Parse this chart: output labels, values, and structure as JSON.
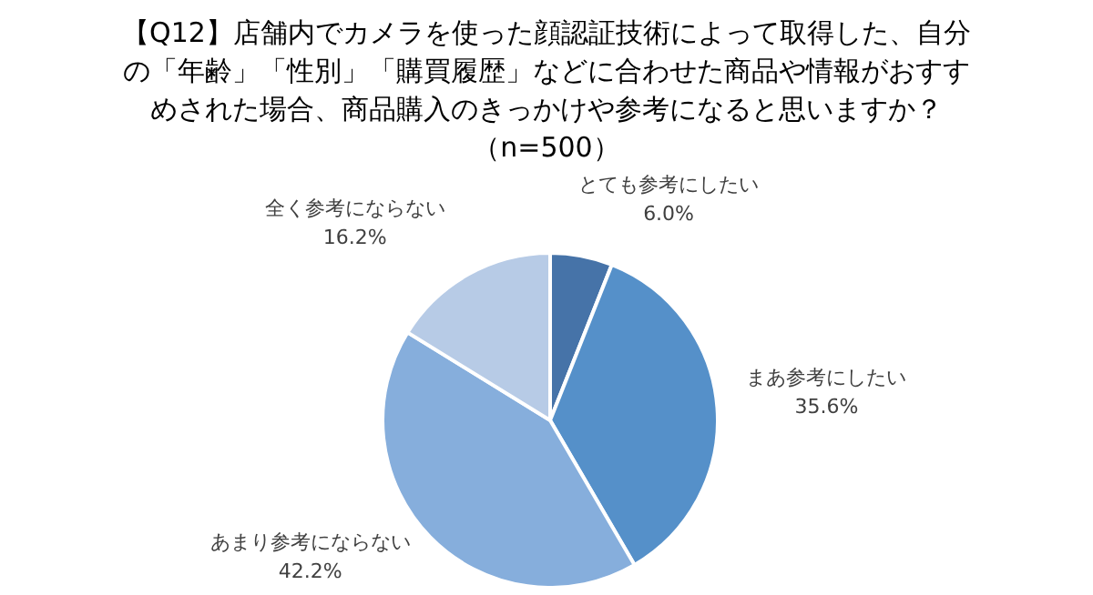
{
  "chart_data": {
    "type": "pie",
    "title": "【Q12】店舗内でカメラを使った顔認証技術によって取得した、自分の「年齢」「性別」「購買履歴」などに合わせた商品や情報がおすすめされた場合、商品購入のきっかけや参考になると思いますか？（n=500）",
    "categories": [
      "とても参考にしたい",
      "まあ参考にしたい",
      "あまり参考にならない",
      "全く参考にならない"
    ],
    "values": [
      6.0,
      35.6,
      42.2,
      16.2
    ],
    "value_labels": [
      "6.0%",
      "35.6%",
      "42.2%",
      "16.2%"
    ],
    "colors": [
      "#4673a8",
      "#5590c9",
      "#86aedc",
      "#b7cbe6"
    ],
    "legend": false
  }
}
